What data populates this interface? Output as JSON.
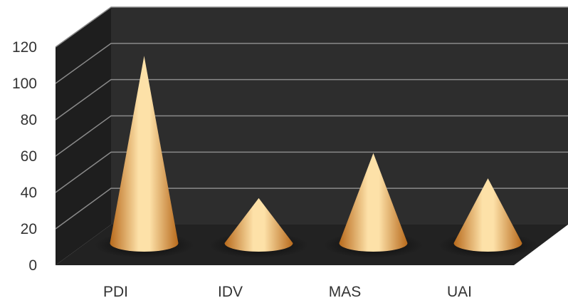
{
  "chart_data": {
    "type": "bar",
    "style": "3d-cone",
    "categories": [
      "PDI",
      "IDV",
      "MAS",
      "UAI"
    ],
    "values": [
      104,
      25,
      50,
      36
    ],
    "ylim": [
      0,
      120
    ],
    "yticks": [
      0,
      20,
      40,
      60,
      80,
      100,
      120
    ],
    "grid": true,
    "legend": "none",
    "colors": {
      "cone": "#f0a040",
      "cone_highlight": "#fde1a8",
      "cone_shadow": "#b86a1c",
      "back_wall": "#2d2d2d",
      "side_wall": "#1e1e1e",
      "floor": "#222222",
      "gridline": "#8a8a8a",
      "label": "#333333"
    }
  }
}
